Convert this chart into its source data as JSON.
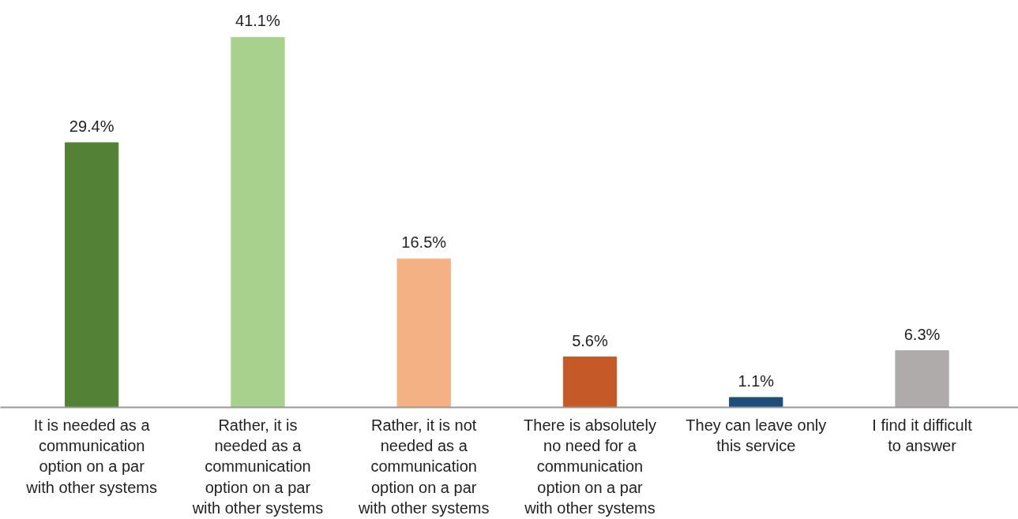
{
  "chart_data": {
    "type": "bar",
    "categories": [
      "It is needed as a communication option on a par with other systems",
      "Rather, it is needed as a communication option on a par with other systems",
      "Rather, it is not needed as a communication option on a par with other systems",
      "There is absolutely no need for a communication option on a par with other systems",
      "They can leave only this service",
      "I find it difficult to answer"
    ],
    "values": [
      29.4,
      41.1,
      16.5,
      5.6,
      1.1,
      6.3
    ],
    "value_labels": [
      "29.4%",
      "41.1%",
      "16.5%",
      "5.6%",
      "1.1%",
      "6.3%"
    ],
    "colors": [
      "#538135",
      "#a9d18e",
      "#f4b183",
      "#c55a28",
      "#1f4e79",
      "#afabab"
    ],
    "grid": false
  }
}
